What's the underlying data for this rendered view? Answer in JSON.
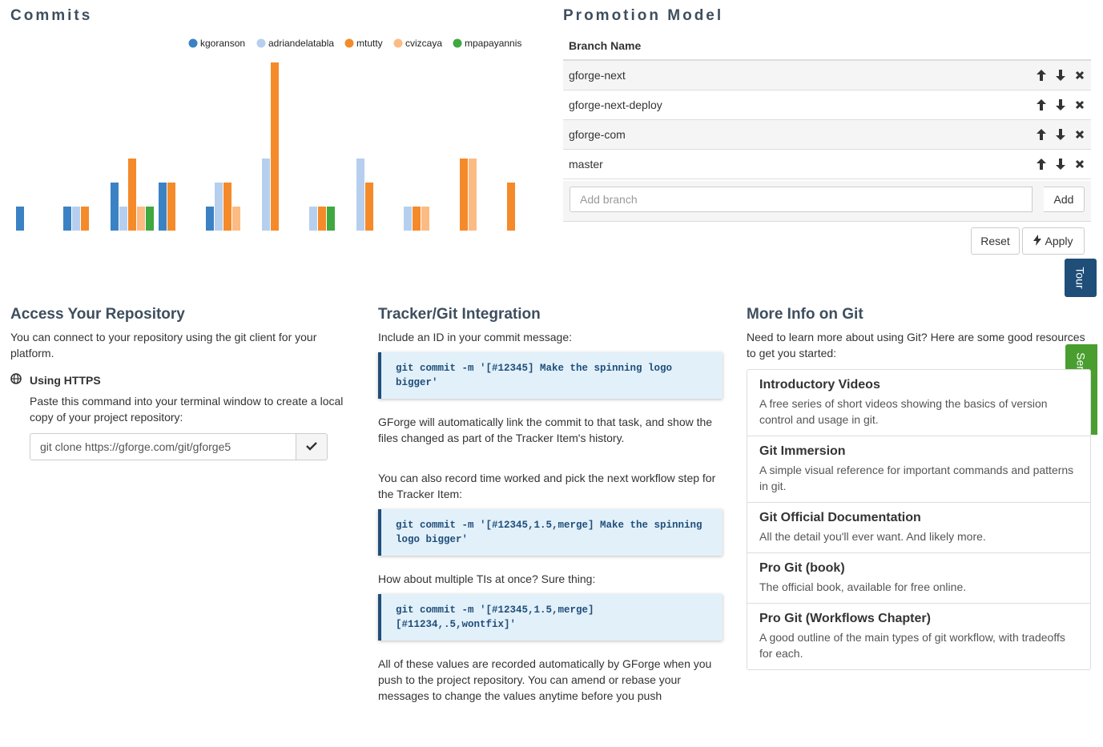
{
  "commits": {
    "title": "Commits"
  },
  "chart_data": {
    "type": "bar",
    "title": "Commits",
    "legend": [
      "kgoranson",
      "adriandelatabla",
      "mtutty",
      "cvizcaya",
      "mpapayannis"
    ],
    "colors": [
      "#3b82c4",
      "#b6cfee",
      "#f58a2a",
      "#fdbb84",
      "#3fa83f"
    ],
    "legend_position": "top-right",
    "ylim": [
      0,
      22
    ],
    "groups": [
      [
        {
          "series": 0,
          "value": 3
        }
      ],
      [
        {
          "series": 0,
          "value": 3
        },
        {
          "series": 1,
          "value": 3
        },
        {
          "series": 2,
          "value": 3
        }
      ],
      [
        {
          "series": 0,
          "value": 6
        },
        {
          "series": 1,
          "value": 3
        },
        {
          "series": 2,
          "value": 9
        },
        {
          "series": 3,
          "value": 3
        },
        {
          "series": 4,
          "value": 3
        }
      ],
      [
        {
          "series": 0,
          "value": 6
        },
        {
          "series": 2,
          "value": 6
        }
      ],
      [
        {
          "series": 0,
          "value": 3
        },
        {
          "series": 1,
          "value": 6
        },
        {
          "series": 2,
          "value": 6
        },
        {
          "series": 3,
          "value": 3
        }
      ],
      [
        {
          "series": 1,
          "value": 9
        },
        {
          "series": 2,
          "value": 21
        }
      ],
      [
        {
          "series": 1,
          "value": 3
        },
        {
          "series": 2,
          "value": 3
        },
        {
          "series": 4,
          "value": 3
        }
      ],
      [
        {
          "series": 1,
          "value": 9
        },
        {
          "series": 2,
          "value": 6
        }
      ],
      [
        {
          "series": 1,
          "value": 3
        },
        {
          "series": 2,
          "value": 3
        },
        {
          "series": 3,
          "value": 3
        }
      ],
      [
        {
          "series": 2,
          "value": 9
        },
        {
          "series": 3,
          "value": 9
        }
      ],
      [
        {
          "series": 2,
          "value": 6
        }
      ]
    ]
  },
  "promotion": {
    "title": "Promotion Model",
    "column_header": "Branch Name",
    "branches": [
      "gforge-next",
      "gforge-next-deploy",
      "gforge-com",
      "master"
    ],
    "add_placeholder": "Add branch",
    "add_label": "Add",
    "reset_label": "Reset",
    "apply_label": "Apply"
  },
  "tour_label": "Tour",
  "feedback_label": "Send feedback",
  "access": {
    "title": "Access Your Repository",
    "intro_before": "You can connect to your repository using the git ",
    "intro_link": "client",
    "intro_after": " for your platform.",
    "https_label": "Using HTTPS",
    "https_desc": "Paste this command into your terminal window to create a local copy of your project repository:",
    "clone_command": "git clone https://gforge.com/git/gforge5"
  },
  "tracker": {
    "title": "Tracker/Git Integration",
    "p1": "Include an ID in your commit message:",
    "code1": "git commit -m '[#12345] Make the spinning logo bigger'",
    "p2": "GForge will automatically link the commit to that task, and show the files changed as part of the Tracker Item's history.",
    "p3": "You can also record time worked and pick the next workflow step for the Tracker Item:",
    "code2": "git commit -m '[#12345,1.5,merge] Make the spinning logo bigger'",
    "p4": "How about multiple TIs at once?  Sure thing:",
    "code3": "git commit -m '[#12345,1.5,merge] [#11234,.5,wontfix]'",
    "p5": "All of these values are recorded automatically by GForge when you push to the project repository. You can amend or rebase your messages to change the values anytime before you push"
  },
  "more_info": {
    "title": "More Info on Git",
    "intro": "Need to learn more about using Git? Here are some good resources to get you started:",
    "resources": [
      {
        "title": "Introductory Videos",
        "desc": "A free series of short videos showing the basics of version control and usage in git."
      },
      {
        "title": "Git Immersion",
        "desc": "A simple visual reference for important commands and patterns in git."
      },
      {
        "title": "Git Official Documentation",
        "desc": "All the detail you'll ever want. And likely more."
      },
      {
        "title": "Pro Git (book)",
        "desc": "The official book, available for free online."
      },
      {
        "title": "Pro Git (Workflows Chapter)",
        "desc": "A good outline of the main types of git workflow, with tradeoffs for each."
      }
    ]
  }
}
